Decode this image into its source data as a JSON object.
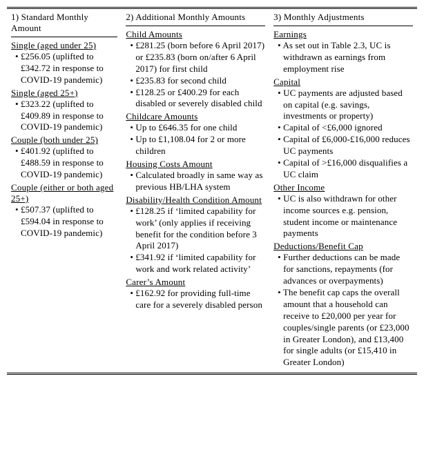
{
  "headers": {
    "col1": "1) Standard Monthly Amount",
    "col2": "2) Additional Monthly Amounts",
    "col3": "3) Monthly Adjustments"
  },
  "col1": {
    "s1_title": "Single (aged under 25)",
    "s1_b1": "£256.05 (uplifted to £342.72 in response to COVID-19 pandemic)",
    "s2_title": "Single (aged 25+)",
    "s2_b1": "£323.22 (uplifted to £409.89 in response to COVID-19 pandemic)",
    "s3_title": "Couple (both under 25)",
    "s3_b1": "£401.92 (uplifted to £488.59 in response to COVID-19 pandemic)",
    "s4_title": "Couple (either or both aged 25+)",
    "s4_b1": "£507.37 (uplifted to £594.04 in response to COVID-19 pandemic)"
  },
  "col2": {
    "s1_title": "Child Amounts",
    "s1_b1": "£281.25 (born before 6 April 2017) or £235.83 (born on/after 6 April 2017) for first child",
    "s1_b2": "£235.83 for second child",
    "s1_b3": "£128.25 or £400.29 for each disabled or severely disabled child",
    "s2_title": "Childcare Amounts",
    "s2_b1": "Up to £646.35 for one child",
    "s2_b2": "Up to £1,108.04 for 2 or more children",
    "s3_title": "Housing Costs Amount",
    "s3_b1": "Calculated broadly in same way as previous HB/LHA system",
    "s4_title": "Disability/Health Condition Amount",
    "s4_b1": "£128.25 if ‘limited capability for work’ (only applies if receiving benefit for the condition before 3 April 2017)",
    "s4_b2": "£341.92 if ‘limited capability for work and work related activity’",
    "s5_title": "Carer’s Amount",
    "s5_b1": "£162.92 for providing full-time care for a severely disabled person"
  },
  "col3": {
    "s1_title": "Earnings",
    "s1_b1": "As set out in Table 2.3, UC is withdrawn as earnings from employment rise",
    "s2_title": "Capital",
    "s2_b1": "UC payments are adjusted based on capital (e.g. savings, investments or property)",
    "s2_b2": "Capital of <£6,000 ignored",
    "s2_b3": "Capital of £6,000-£16,000 reduces UC payments",
    "s2_b4": "Capital of >£16,000 disqualifies a UC claim",
    "s3_title": "Other Income",
    "s3_b1": "UC is also withdrawn for other income sources e.g. pension, student income or maintenance payments",
    "s4_title": "Deductions/Benefit Cap",
    "s4_b1": "Further deductions can be made for sanctions, repayments (for advances or overpayments)",
    "s4_b2": "The benefit cap caps the overall amount that a household can receive to £20,000 per year for couples/single parents (or £23,000 in Greater London), and £13,400 for single adults (or £15,410 in Greater London)"
  }
}
